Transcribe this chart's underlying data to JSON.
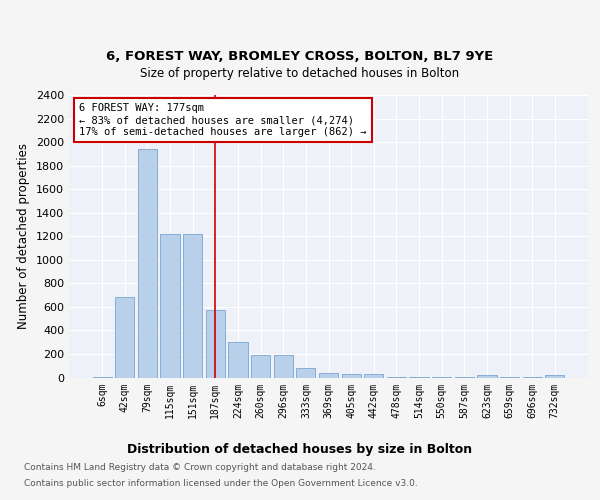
{
  "title1": "6, FOREST WAY, BROMLEY CROSS, BOLTON, BL7 9YE",
  "title2": "Size of property relative to detached houses in Bolton",
  "xlabel": "Distribution of detached houses by size in Bolton",
  "ylabel": "Number of detached properties",
  "bar_color": "#b8d0ea",
  "bar_edgecolor": "#6699cc",
  "categories": [
    "6sqm",
    "42sqm",
    "79sqm",
    "115sqm",
    "151sqm",
    "187sqm",
    "224sqm",
    "260sqm",
    "296sqm",
    "333sqm",
    "369sqm",
    "405sqm",
    "442sqm",
    "478sqm",
    "514sqm",
    "550sqm",
    "587sqm",
    "623sqm",
    "659sqm",
    "696sqm",
    "732sqm"
  ],
  "values": [
    5,
    680,
    1940,
    1220,
    1220,
    570,
    300,
    195,
    195,
    80,
    42,
    32,
    30,
    7,
    7,
    7,
    7,
    20,
    7,
    7,
    20
  ],
  "vline_x": 5,
  "vline_color": "#cc0000",
  "annotation_text": "6 FOREST WAY: 177sqm\n← 83% of detached houses are smaller (4,274)\n17% of semi-detached houses are larger (862) →",
  "annotation_box_color": "#ffffff",
  "annotation_box_edgecolor": "#cc0000",
  "ylim": [
    0,
    2400
  ],
  "yticks": [
    0,
    200,
    400,
    600,
    800,
    1000,
    1200,
    1400,
    1600,
    1800,
    2000,
    2200,
    2400
  ],
  "footer1": "Contains HM Land Registry data © Crown copyright and database right 2024.",
  "footer2": "Contains public sector information licensed under the Open Government Licence v3.0.",
  "bg_color": "#eef2f8",
  "fig_bg_color": "#f5f5f5",
  "grid_color": "#ffffff"
}
